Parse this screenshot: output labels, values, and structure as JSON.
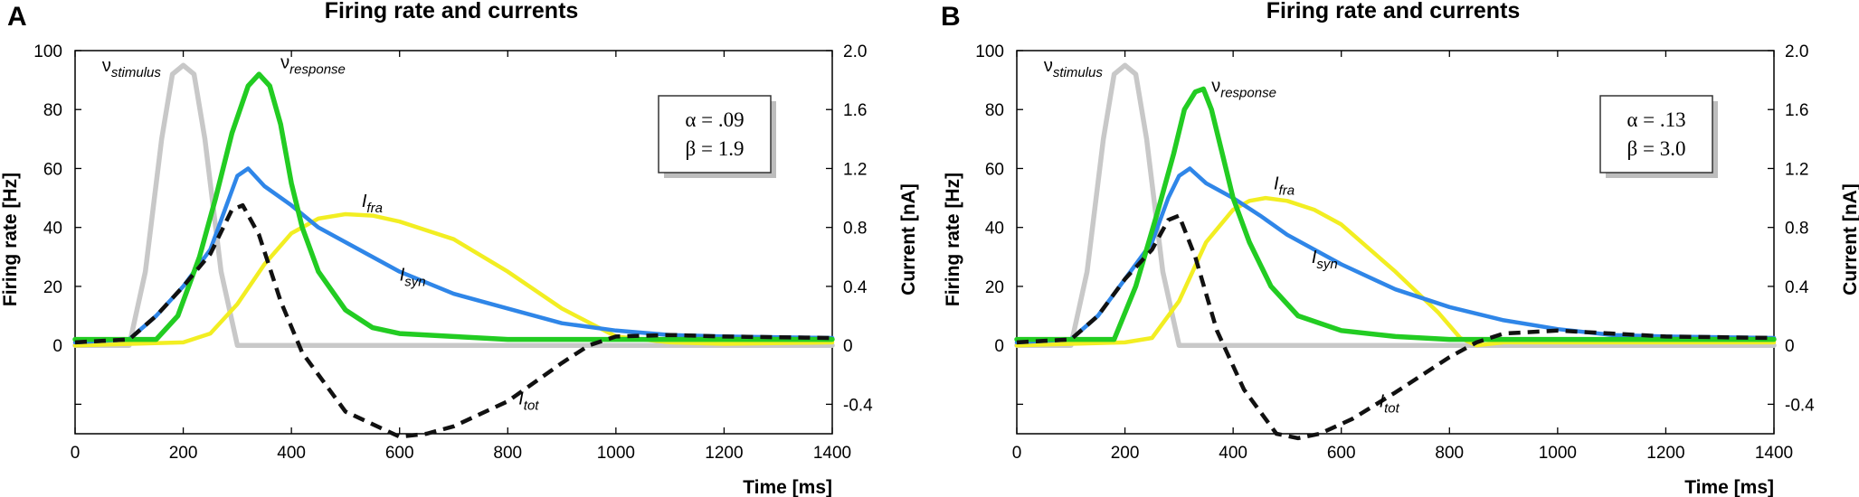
{
  "chart_data": [
    {
      "panel": "A",
      "type": "line",
      "title": "Firing rate and currents",
      "xlabel": "Time  [ms]",
      "ylabel": "Firing  rate  [Hz]",
      "y2label": "Current  [nA]",
      "xlim": [
        0,
        1400
      ],
      "ylim": [
        -30,
        100
      ],
      "y2lim": [
        -0.6,
        2.0
      ],
      "xticks": [
        0,
        200,
        400,
        600,
        800,
        1000,
        1200,
        1400
      ],
      "yticks": [
        0,
        20,
        40,
        60,
        80,
        100
      ],
      "y2ticks": [
        "-0.4",
        "0",
        "0.4",
        "0.8",
        "1.2",
        "1.6",
        "2.0"
      ],
      "params": {
        "alpha": "α = .09",
        "beta": "β = 1.9"
      },
      "series": [
        {
          "name": "stimulus",
          "label": "ν",
          "sub": "stimulus",
          "axis": "left",
          "color": "#c8c8c8",
          "style": "solid",
          "x": [
            0,
            100,
            130,
            160,
            180,
            200,
            220,
            240,
            270,
            300,
            1400
          ],
          "y": [
            0,
            0,
            25,
            70,
            92,
            95,
            92,
            70,
            25,
            0,
            0
          ]
        },
        {
          "name": "response",
          "label": "ν",
          "sub": "response",
          "axis": "left",
          "color": "#22cc22",
          "style": "solid",
          "x": [
            0,
            150,
            190,
            230,
            260,
            290,
            320,
            340,
            360,
            380,
            400,
            420,
            450,
            500,
            550,
            600,
            700,
            800,
            900,
            1000,
            1100,
            1200,
            1400
          ],
          "y": [
            2,
            2,
            10,
            30,
            50,
            72,
            88,
            92,
            88,
            75,
            55,
            40,
            25,
            12,
            6,
            4,
            3,
            2,
            2,
            2,
            2,
            2,
            2
          ]
        },
        {
          "name": "syn",
          "label": "I",
          "sub": "syn",
          "axis": "right",
          "color": "#2f86e8",
          "style": "solid",
          "x": [
            0,
            100,
            150,
            200,
            250,
            280,
            300,
            320,
            350,
            400,
            450,
            500,
            600,
            700,
            800,
            900,
            1000,
            1100,
            1200,
            1400
          ],
          "y": [
            0.02,
            0.04,
            0.2,
            0.4,
            0.65,
            0.95,
            1.15,
            1.2,
            1.08,
            0.95,
            0.8,
            0.7,
            0.5,
            0.35,
            0.25,
            0.15,
            0.1,
            0.07,
            0.06,
            0.05
          ]
        },
        {
          "name": "fra",
          "label": "I",
          "sub": "fra",
          "axis": "right",
          "color": "#f2ee22",
          "style": "solid",
          "x": [
            0,
            200,
            250,
            300,
            350,
            400,
            450,
            500,
            550,
            600,
            700,
            800,
            900,
            1000,
            1100,
            1200,
            1400
          ],
          "y": [
            0,
            0.02,
            0.08,
            0.28,
            0.55,
            0.76,
            0.86,
            0.89,
            0.88,
            0.84,
            0.72,
            0.5,
            0.25,
            0.06,
            0.02,
            0.01,
            0.02
          ]
        },
        {
          "name": "tot",
          "label": "I",
          "sub": "tot",
          "axis": "right",
          "color": "#111111",
          "style": "dashed",
          "x": [
            0,
            100,
            150,
            200,
            250,
            290,
            310,
            340,
            380,
            420,
            500,
            600,
            650,
            700,
            800,
            900,
            950,
            1000,
            1100,
            1200,
            1400
          ],
          "y": [
            0.02,
            0.04,
            0.2,
            0.4,
            0.62,
            0.92,
            0.95,
            0.75,
            0.3,
            -0.05,
            -0.45,
            -0.62,
            -0.6,
            -0.55,
            -0.38,
            -0.12,
            0.0,
            0.06,
            0.07,
            0.06,
            0.05
          ]
        }
      ],
      "series_labels": [
        {
          "series": "stimulus",
          "x": 50,
          "y": 93
        },
        {
          "series": "response",
          "x": 380,
          "y": 94
        },
        {
          "series": "fra",
          "x": 530,
          "y": 47
        },
        {
          "series": "syn",
          "x": 600,
          "y": 22
        },
        {
          "series": "tot",
          "x": 820,
          "y": -20
        }
      ]
    },
    {
      "panel": "B",
      "type": "line",
      "title": "Firing rate and currents",
      "xlabel": "Time  [ms]",
      "ylabel": "Firing  rate  [Hz]",
      "y2label": "Current  [nA]",
      "xlim": [
        0,
        1400
      ],
      "ylim": [
        -30,
        100
      ],
      "y2lim": [
        -0.6,
        2.0
      ],
      "xticks": [
        0,
        200,
        400,
        600,
        800,
        1000,
        1200,
        1400
      ],
      "yticks": [
        0,
        20,
        40,
        60,
        80,
        100
      ],
      "y2ticks": [
        "-0.4",
        "0",
        "0.4",
        "0.8",
        "1.2",
        "1.6",
        "2.0"
      ],
      "params": {
        "alpha": "α = .13",
        "beta": "β = 3.0"
      },
      "series": [
        {
          "name": "stimulus",
          "label": "ν",
          "sub": "stimulus",
          "axis": "left",
          "color": "#c8c8c8",
          "style": "solid",
          "x": [
            0,
            100,
            130,
            160,
            180,
            200,
            220,
            240,
            270,
            300,
            1400
          ],
          "y": [
            0,
            0,
            25,
            70,
            92,
            95,
            92,
            70,
            25,
            0,
            0
          ]
        },
        {
          "name": "response",
          "label": "ν",
          "sub": "response",
          "axis": "left",
          "color": "#22cc22",
          "style": "solid",
          "x": [
            0,
            180,
            220,
            260,
            290,
            310,
            330,
            345,
            360,
            380,
            400,
            430,
            470,
            520,
            600,
            700,
            800,
            900,
            1000,
            1200,
            1400
          ],
          "y": [
            2,
            2,
            20,
            45,
            65,
            80,
            86,
            87,
            80,
            65,
            50,
            35,
            20,
            10,
            5,
            3,
            2,
            2,
            2,
            2,
            2
          ]
        },
        {
          "name": "syn",
          "label": "I",
          "sub": "syn",
          "axis": "right",
          "color": "#2f86e8",
          "style": "solid",
          "x": [
            0,
            100,
            150,
            200,
            250,
            280,
            300,
            320,
            350,
            400,
            450,
            500,
            600,
            700,
            800,
            900,
            1000,
            1100,
            1200,
            1400
          ],
          "y": [
            0.02,
            0.04,
            0.2,
            0.45,
            0.7,
            1.0,
            1.15,
            1.2,
            1.1,
            1.0,
            0.88,
            0.75,
            0.55,
            0.38,
            0.26,
            0.17,
            0.11,
            0.07,
            0.06,
            0.05
          ]
        },
        {
          "name": "fra",
          "label": "I",
          "sub": "fra",
          "axis": "right",
          "color": "#f2ee22",
          "style": "solid",
          "x": [
            0,
            200,
            250,
            300,
            350,
            400,
            430,
            460,
            500,
            550,
            600,
            700,
            780,
            820,
            850,
            900,
            1000,
            1200,
            1400
          ],
          "y": [
            0,
            0.02,
            0.05,
            0.3,
            0.7,
            0.92,
            0.98,
            1.0,
            0.98,
            0.92,
            0.82,
            0.5,
            0.22,
            0.05,
            0.0,
            0.02,
            0.02,
            0.02,
            0.02
          ]
        },
        {
          "name": "tot",
          "label": "I",
          "sub": "tot",
          "axis": "right",
          "color": "#111111",
          "style": "dashed",
          "x": [
            0,
            100,
            150,
            200,
            250,
            280,
            300,
            330,
            370,
            420,
            480,
            520,
            560,
            620,
            700,
            800,
            850,
            900,
            1000,
            1100,
            1200,
            1400
          ],
          "y": [
            0.02,
            0.04,
            0.2,
            0.45,
            0.65,
            0.85,
            0.88,
            0.6,
            0.1,
            -0.3,
            -0.6,
            -0.63,
            -0.6,
            -0.5,
            -0.32,
            -0.08,
            0.02,
            0.08,
            0.1,
            0.08,
            0.06,
            0.05
          ]
        }
      ],
      "series_labels": [
        {
          "series": "stimulus",
          "x": 50,
          "y": 93
        },
        {
          "series": "response",
          "x": 360,
          "y": 86
        },
        {
          "series": "fra",
          "x": 475,
          "y": 53
        },
        {
          "series": "syn",
          "x": 545,
          "y": 28
        },
        {
          "series": "tot",
          "x": 670,
          "y": -21
        }
      ]
    }
  ]
}
